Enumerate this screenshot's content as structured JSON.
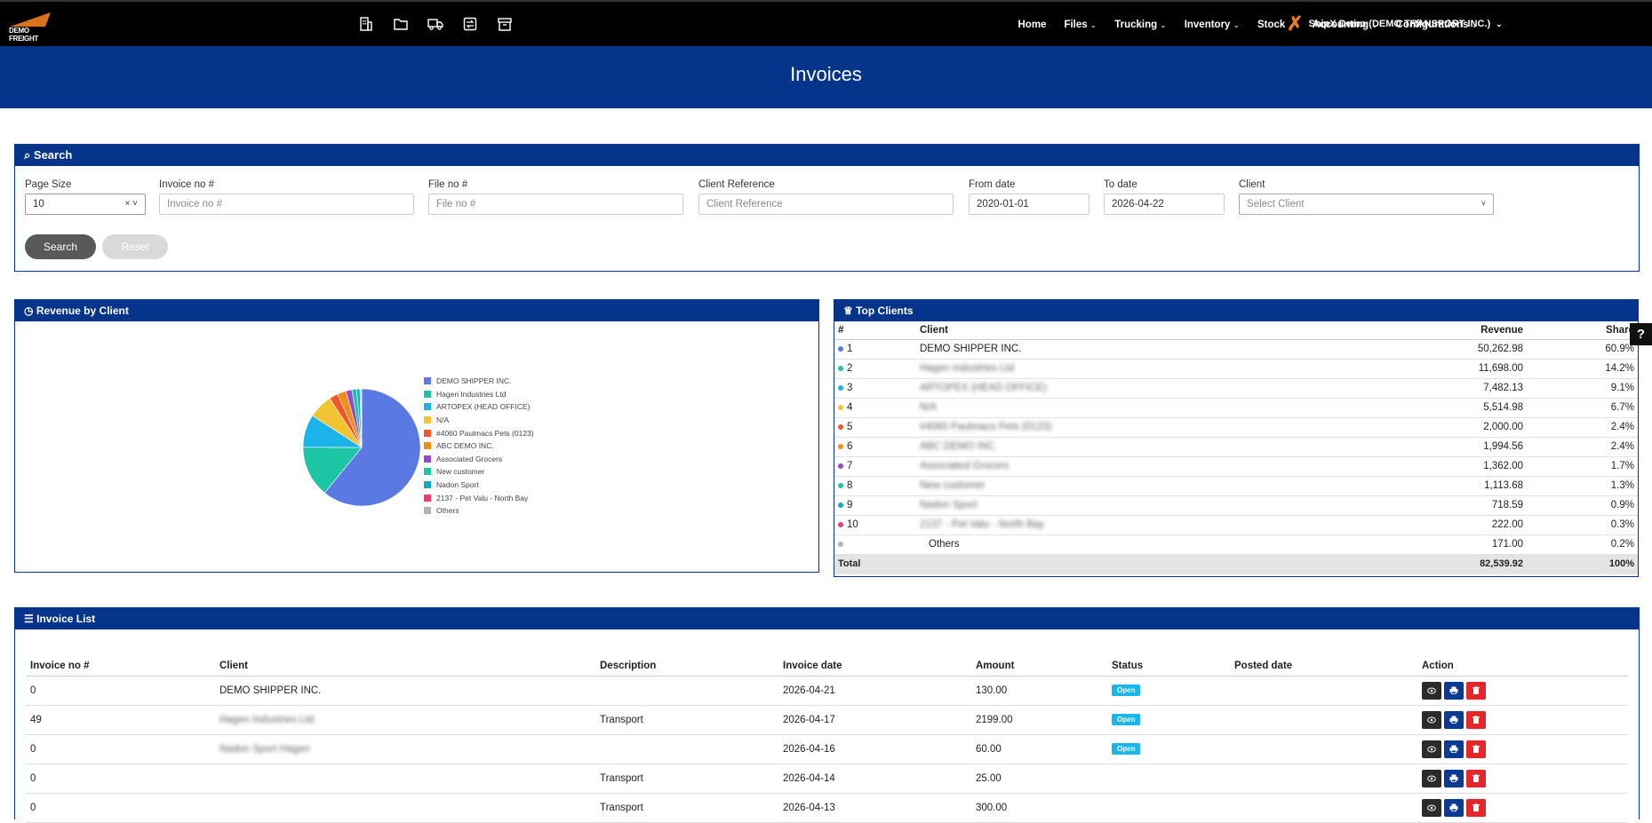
{
  "app": {
    "logo_text": "DEMO FREIGHT",
    "page_title": "Invoices"
  },
  "quick_icons": [
    "building-icon",
    "folder-icon",
    "truck-icon",
    "transfer-icon",
    "archive-icon"
  ],
  "nav": {
    "items": [
      {
        "label": "Home",
        "caret": false
      },
      {
        "label": "Files",
        "caret": true
      },
      {
        "label": "Trucking",
        "caret": true
      },
      {
        "label": "Inventory",
        "caret": true
      },
      {
        "label": "Stock",
        "caret": true
      },
      {
        "label": "Accounting",
        "caret": true
      },
      {
        "label": "Configurations",
        "caret": true
      }
    ],
    "company": "ShipX Demo (DEMO TRANSPORT INC.)",
    "help": "?"
  },
  "search": {
    "title": "Search",
    "page_size_label": "Page Size",
    "page_size_value": "10",
    "invoice_label": "Invoice no #",
    "invoice_placeholder": "Invoice no #",
    "file_label": "File no #",
    "file_placeholder": "File no #",
    "client_ref_label": "Client Reference",
    "client_ref_placeholder": "Client Reference",
    "from_label": "From date",
    "from_value": "2020-01-01",
    "to_label": "To date",
    "to_value": "2026-04-22",
    "client_label": "Client",
    "client_placeholder": "Select Client",
    "search_btn": "Search",
    "reset_btn": "Reset"
  },
  "revenue": {
    "title": "Revenue by Client"
  },
  "chart_data": {
    "type": "pie",
    "categories": [
      "DEMO SHIPPER INC.",
      "Hagen Industries Ltd",
      "ARTOPEX (HEAD OFFICE)",
      "N/A",
      "#4060 Paulmacs Pets (0123)",
      "ABC DEMO INC.",
      "Associated Grocers",
      "New customer",
      "Nadon Sport",
      "2137 - Pet Valu - North Bay",
      "Others"
    ],
    "values": [
      50262.98,
      11698.0,
      7482.13,
      5514.98,
      2000.0,
      1994.56,
      1362.0,
      1113.68,
      718.59,
      222.0,
      171.0
    ],
    "colors": [
      "#5b79e3",
      "#1cc6a4",
      "#1bb3e8",
      "#f3c432",
      "#f5562d",
      "#f28d1a",
      "#9447cf",
      "#1cc6a4",
      "#14a8c9",
      "#ef3d6c",
      "#b3b3b3"
    ],
    "legend_position": "right"
  },
  "top_clients": {
    "title": "Top Clients",
    "headers": {
      "rank": "#",
      "client": "Client",
      "revenue": "Revenue",
      "share": "Share"
    },
    "rows": [
      {
        "rank": "1",
        "client": "DEMO SHIPPER INC.",
        "revenue": "50,262.98",
        "share": "60.9%",
        "color": "#5b79e3",
        "blurred": false
      },
      {
        "rank": "2",
        "client": "Hagen Industries Ltd",
        "revenue": "11,698.00",
        "share": "14.2%",
        "color": "#1cc6a4",
        "blurred": true
      },
      {
        "rank": "3",
        "client": "ARTOPEX (HEAD OFFICE)",
        "revenue": "7,482.13",
        "share": "9.1%",
        "color": "#1bb3e8",
        "blurred": true
      },
      {
        "rank": "4",
        "client": "N/A",
        "revenue": "5,514.98",
        "share": "6.7%",
        "color": "#f3c432",
        "blurred": true
      },
      {
        "rank": "5",
        "client": "#4060 Paulmacs Pets (0123)",
        "revenue": "2,000.00",
        "share": "2.4%",
        "color": "#f5562d",
        "blurred": true
      },
      {
        "rank": "6",
        "client": "ABC DEMO INC.",
        "revenue": "1,994.56",
        "share": "2.4%",
        "color": "#f28d1a",
        "blurred": true
      },
      {
        "rank": "7",
        "client": "Associated Grocers",
        "revenue": "1,362.00",
        "share": "1.7%",
        "color": "#9447cf",
        "blurred": true
      },
      {
        "rank": "8",
        "client": "New customer",
        "revenue": "1,113.68",
        "share": "1.3%",
        "color": "#1cc6a4",
        "blurred": true
      },
      {
        "rank": "9",
        "client": "Nadon Sport",
        "revenue": "718.59",
        "share": "0.9%",
        "color": "#14a8c9",
        "blurred": true
      },
      {
        "rank": "10",
        "client": "2137 - Pet Valu - North Bay",
        "revenue": "222.00",
        "share": "0.3%",
        "color": "#ef3d6c",
        "blurred": true
      },
      {
        "rank": "",
        "client": "Others",
        "revenue": "171.00",
        "share": "0.2%",
        "color": "#b3b3b3",
        "blurred": false
      }
    ],
    "total": {
      "label": "Total",
      "revenue": "82,539.92",
      "share": "100%"
    }
  },
  "invoice_list": {
    "title": "Invoice List",
    "headers": [
      "Invoice no #",
      "Client",
      "Description",
      "Invoice date",
      "Amount",
      "Status",
      "Posted date",
      "Action"
    ],
    "rows": [
      {
        "invoice": "0",
        "client": "DEMO SHIPPER INC.",
        "client_blurred": false,
        "description": "",
        "date": "2026-04-21",
        "amount": "130.00",
        "status": "Open",
        "posted": ""
      },
      {
        "invoice": "49",
        "client": "Hagen Industries Ltd",
        "client_blurred": true,
        "description": "Transport",
        "date": "2026-04-17",
        "amount": "2199.00",
        "status": "Open",
        "posted": ""
      },
      {
        "invoice": "0",
        "client": "Nadon Sport Hagen",
        "client_blurred": true,
        "description": "",
        "date": "2026-04-16",
        "amount": "60.00",
        "status": "Open",
        "posted": ""
      },
      {
        "invoice": "0",
        "client": "",
        "client_blurred": false,
        "description": "Transport",
        "date": "2026-04-14",
        "amount": "25.00",
        "status": "",
        "posted": ""
      },
      {
        "invoice": "0",
        "client": "",
        "client_blurred": false,
        "description": "Transport",
        "date": "2026-04-13",
        "amount": "300.00",
        "status": "",
        "posted": ""
      }
    ]
  }
}
